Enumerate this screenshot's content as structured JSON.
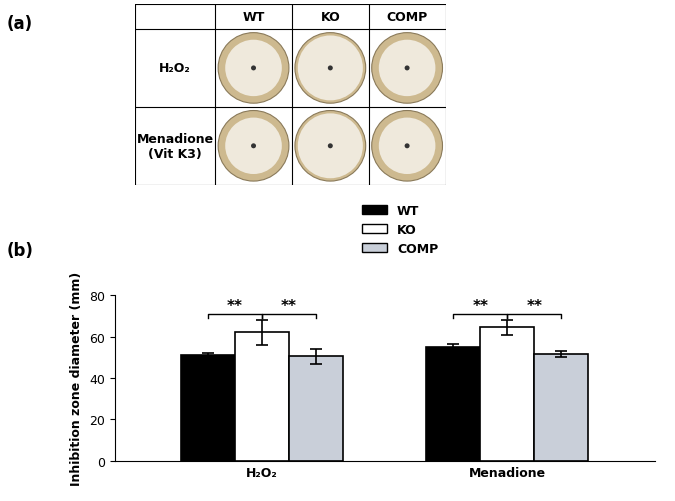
{
  "panel_a": {
    "label": "(a)",
    "columns": [
      "WT",
      "KO",
      "COMP"
    ],
    "rows": [
      "H₂O₂",
      "Menadione\n(Vit K3)"
    ]
  },
  "chart_data": {
    "type": "bar",
    "panel_label": "(b)",
    "y_label": "Inhibition zone diameter (mm)",
    "categories": [
      "H₂O₂",
      "Menadione"
    ],
    "series": [
      {
        "name": "WT",
        "color": "#000000",
        "values": [
          51,
          55
        ],
        "errors": [
          1,
          1.5
        ]
      },
      {
        "name": "KO",
        "color": "#ffffff",
        "values": [
          62,
          64.5
        ],
        "errors": [
          6,
          3.5
        ]
      },
      {
        "name": "COMP",
        "color": "#c9cfd9",
        "values": [
          50.5,
          51.5
        ],
        "errors": [
          3.5,
          1.5
        ]
      }
    ],
    "significance": [
      {
        "category": "H₂O₂",
        "from": "WT",
        "to": "KO",
        "label": "**"
      },
      {
        "category": "H₂O₂",
        "from": "KO",
        "to": "COMP",
        "label": "**"
      },
      {
        "category": "Menadione",
        "from": "WT",
        "to": "KO",
        "label": "**"
      },
      {
        "category": "Menadione",
        "from": "KO",
        "to": "COMP",
        "label": "**"
      }
    ],
    "ylim": [
      0,
      80
    ],
    "yticks": [
      0,
      20,
      40,
      60,
      80
    ],
    "legend": "upper right",
    "grid": false
  }
}
